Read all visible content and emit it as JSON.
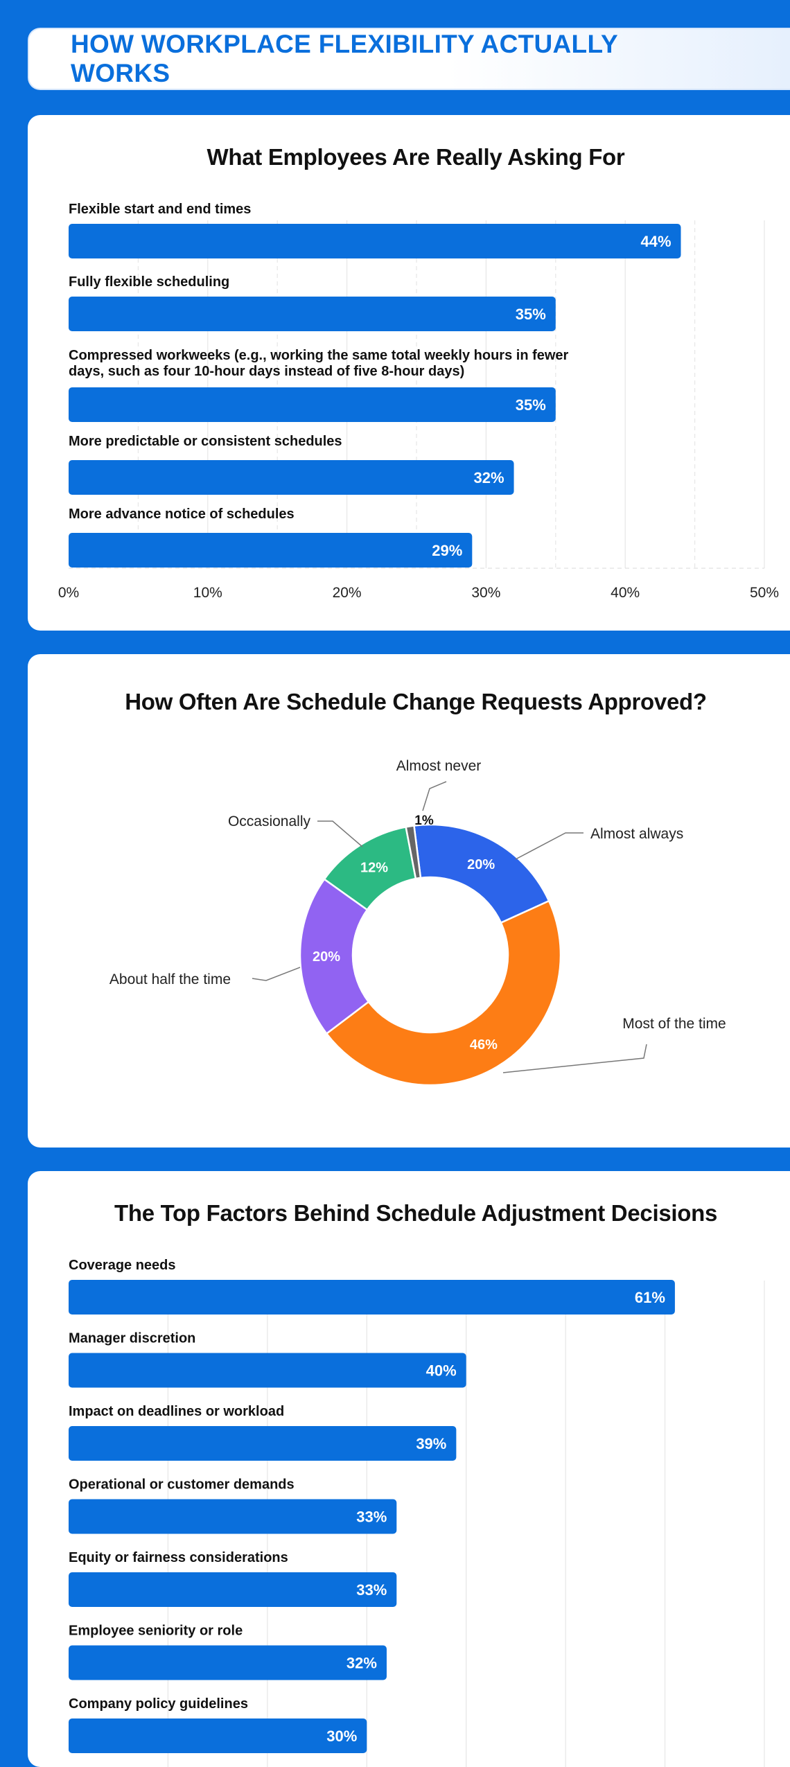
{
  "banner": {
    "title": "HOW WORKPLACE FLEXIBILITY ACTUALLY WORKS"
  },
  "colors": {
    "page_bg": "#0a6fdc",
    "bar": "#0a6fdc",
    "grid": "#e2e2e2"
  },
  "chart_data": [
    {
      "type": "bar",
      "orientation": "horizontal",
      "title": "What Employees Are Really Asking For",
      "categories": [
        "Flexible start and end times",
        "Fully flexible scheduling",
        "Compressed workweeks (e.g., working the same total weekly hours in fewer days, such as four 10-hour days instead of five 8-hour days)",
        "More predictable or consistent schedules",
        "More advance notice of schedules"
      ],
      "category_lines": [
        [
          "Flexible start and end times"
        ],
        [
          "Fully flexible scheduling"
        ],
        [
          "Compressed workweeks (e.g., working the same total weekly hours in fewer",
          "days, such as four 10-hour days instead of five 8-hour days)"
        ],
        [
          "More predictable or consistent schedules"
        ],
        [
          "More advance notice of schedules"
        ]
      ],
      "values": [
        44,
        35,
        35,
        32,
        29
      ],
      "value_labels": [
        "44%",
        "35%",
        "35%",
        "32%",
        "29%"
      ],
      "xlim": [
        0,
        50
      ],
      "ticks": [
        0,
        10,
        20,
        30,
        40,
        50
      ],
      "tick_labels": [
        "0%",
        "10%",
        "20%",
        "30%",
        "40%",
        "50%"
      ],
      "xlabel": "",
      "ylabel": "",
      "grid": "vertical"
    },
    {
      "type": "pie",
      "style": "donut",
      "title": "How Often Are Schedule Change Requests Approved?",
      "slices": [
        {
          "label": "Almost always",
          "value": 20,
          "value_label": "20%",
          "color": "#2c64ea"
        },
        {
          "label": "Most of the time",
          "value": 46,
          "value_label": "46%",
          "color": "#fd7d15"
        },
        {
          "label": "About half the time",
          "value": 20,
          "value_label": "20%",
          "color": "#9163f2"
        },
        {
          "label": "Occasionally",
          "value": 12,
          "value_label": "12%",
          "color": "#2cba83"
        },
        {
          "label": "Almost never",
          "value": 1,
          "value_label": "1%",
          "color": "#666666"
        }
      ]
    },
    {
      "type": "bar",
      "orientation": "horizontal",
      "title": "The Top Factors Behind Schedule Adjustment Decisions",
      "categories": [
        "Coverage needs",
        "Manager discretion",
        "Impact on deadlines or workload",
        "Operational or customer demands",
        "Equity or fairness considerations",
        "Employee seniority or role",
        "Company policy guidelines"
      ],
      "values": [
        61,
        40,
        39,
        33,
        33,
        32,
        30
      ],
      "value_labels": [
        "61%",
        "40%",
        "39%",
        "33%",
        "33%",
        "32%",
        "30%"
      ],
      "xlim": [
        0,
        70
      ],
      "grid": "vertical",
      "xlabel": "",
      "ylabel": ""
    }
  ]
}
